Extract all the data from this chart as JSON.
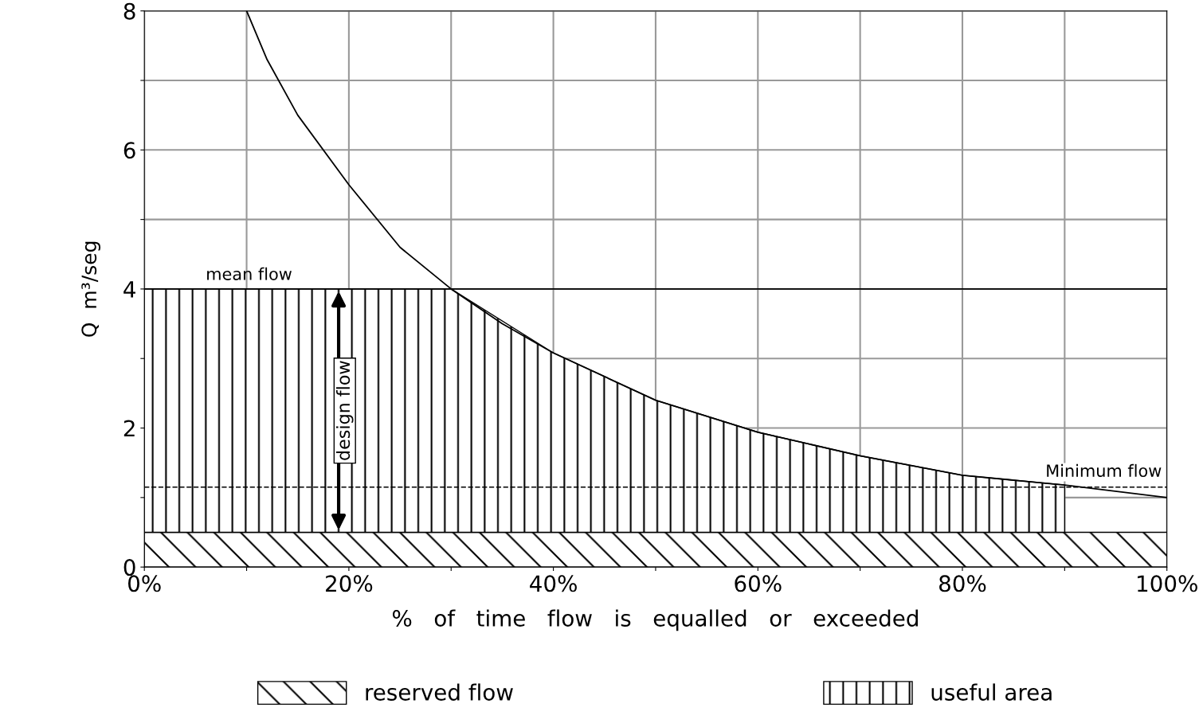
{
  "chart_data": {
    "type": "line",
    "xlabel": "%   of   time   flow   is   equalled   or   exceeded",
    "ylabel": "Q  m³/seg",
    "xlim": [
      0,
      100
    ],
    "ylim": [
      0,
      8
    ],
    "xticks": [
      {
        "value": 0,
        "label": "0%"
      },
      {
        "value": 10,
        "label": null
      },
      {
        "value": 20,
        "label": "20%"
      },
      {
        "value": 30,
        "label": null
      },
      {
        "value": 40,
        "label": "40%"
      },
      {
        "value": 50,
        "label": null
      },
      {
        "value": 60,
        "label": "60%"
      },
      {
        "value": 70,
        "label": null
      },
      {
        "value": 80,
        "label": "80%"
      },
      {
        "value": 90,
        "label": null
      },
      {
        "value": 100,
        "label": "100%"
      }
    ],
    "yticks": [
      0,
      {
        "value": 1,
        "label": null
      },
      2,
      {
        "value": 3,
        "label": null
      },
      4,
      {
        "value": 5,
        "label": null
      },
      6,
      {
        "value": 7,
        "label": null
      },
      8
    ],
    "grid": true,
    "legend": "bottom",
    "marker": "none",
    "series": [
      {
        "type": "area",
        "name": "useful area",
        "color": "#000000",
        "x": [
          0,
          30,
          40,
          50,
          60,
          70,
          80,
          90
        ],
        "values": [
          4,
          4,
          3.08,
          2.4,
          1.94,
          1.6,
          1.32,
          1.18
        ]
      },
      {
        "color": "#000000",
        "x": [
          10,
          12,
          15,
          20,
          25,
          30,
          35,
          40,
          50,
          60,
          70,
          80,
          90,
          100
        ],
        "values": [
          8,
          7.3,
          6.5,
          5.5,
          4.6,
          4.0,
          3.5,
          3.08,
          2.4,
          1.94,
          1.6,
          1.32,
          1.18,
          1.0
        ]
      }
    ],
    "bands": [
      {
        "axis": "y",
        "from": 0,
        "to": 0.5,
        "label": "reserved flow",
        "color": "#000000"
      }
    ],
    "ref_lines": [
      {
        "axis": "y",
        "value": 4,
        "label": "mean flow",
        "color": "#000000",
        "line_style": "solid"
      },
      {
        "axis": "y",
        "value": 1.15,
        "label": "Minimum flow",
        "color": "#000000",
        "line_style": "dashed"
      }
    ],
    "annotations": [
      "design flow"
    ]
  }
}
